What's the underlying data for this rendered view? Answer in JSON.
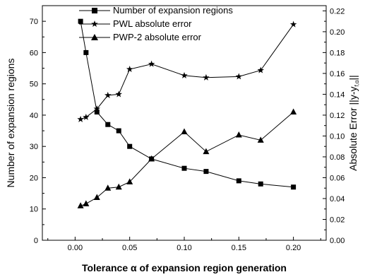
{
  "chart_data": {
    "type": "line",
    "xlabel": "Tolerance α of expansion region generation",
    "ylabel_left": "Number of expansion regions",
    "ylabel_right": "Absolute Error ||y-y",
    "ylabel_right_sub": "f,α",
    "ylabel_right_end": "||",
    "xlim": [
      -0.03,
      0.23
    ],
    "ylim_left": [
      0,
      75
    ],
    "ylim_right": [
      0,
      0.225
    ],
    "x_ticks": [
      "0.00",
      "0.05",
      "0.10",
      "0.15",
      "0.20"
    ],
    "x_tick_values": [
      0,
      0.05,
      0.1,
      0.15,
      0.2
    ],
    "y_left_ticks": [
      "0",
      "10",
      "20",
      "30",
      "40",
      "50",
      "60",
      "70"
    ],
    "y_left_tick_values": [
      0,
      10,
      20,
      30,
      40,
      50,
      60,
      70
    ],
    "y_right_ticks": [
      "0.00",
      "0.02",
      "0.04",
      "0.06",
      "0.08",
      "0.10",
      "0.12",
      "0.14",
      "0.16",
      "0.18",
      "0.20",
      "0.22"
    ],
    "y_right_tick_values": [
      0,
      0.02,
      0.04,
      0.06,
      0.08,
      0.1,
      0.12,
      0.14,
      0.16,
      0.18,
      0.2,
      0.22
    ],
    "grid": false,
    "legend_position": "top-center",
    "series": [
      {
        "name": "Number of expansion regions",
        "axis": "left",
        "marker": "square",
        "x": [
          0.005,
          0.01,
          0.02,
          0.03,
          0.04,
          0.05,
          0.07,
          0.1,
          0.12,
          0.15,
          0.17,
          0.2
        ],
        "y": [
          70,
          60,
          41,
          37,
          35,
          30,
          26,
          23,
          22,
          19,
          18,
          17
        ]
      },
      {
        "name": "PWL absolute error",
        "axis": "right",
        "marker": "star",
        "x": [
          0.005,
          0.01,
          0.02,
          0.03,
          0.04,
          0.05,
          0.07,
          0.1,
          0.12,
          0.15,
          0.17,
          0.2
        ],
        "y": [
          0.116,
          0.118,
          0.126,
          0.139,
          0.14,
          0.164,
          0.169,
          0.158,
          0.156,
          0.157,
          0.163,
          0.207
        ]
      },
      {
        "name": "PWP-2 absolute error",
        "axis": "right",
        "marker": "triangle",
        "x": [
          0.005,
          0.01,
          0.02,
          0.03,
          0.04,
          0.05,
          0.07,
          0.1,
          0.12,
          0.15,
          0.17,
          0.2
        ],
        "y": [
          0.033,
          0.035,
          0.041,
          0.05,
          0.051,
          0.056,
          0.078,
          0.104,
          0.085,
          0.101,
          0.096,
          0.123
        ]
      }
    ]
  }
}
